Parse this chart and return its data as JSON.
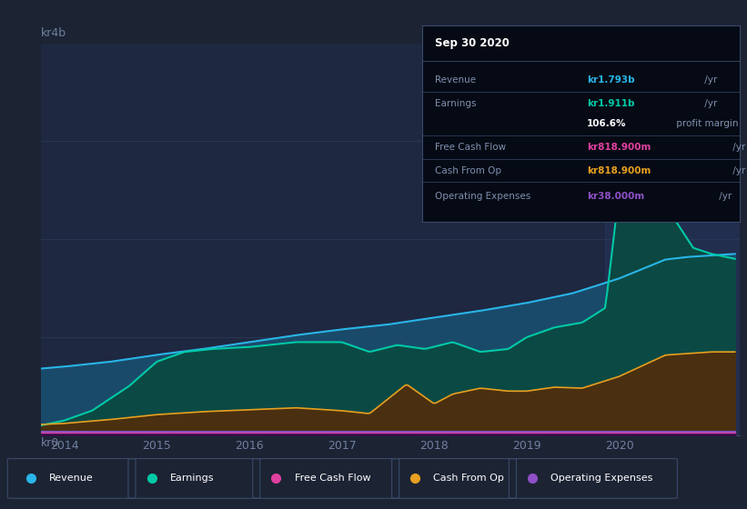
{
  "bg_color": "#1c2333",
  "plot_bg_color": "#1e2840",
  "grid_color": "#2a3a5a",
  "xlim": [
    2013.75,
    2021.3
  ],
  "ylim": [
    0,
    4000000000
  ],
  "xtick_positions": [
    2014,
    2015,
    2016,
    2017,
    2018,
    2019,
    2020
  ],
  "xtick_labels": [
    "2014",
    "2015",
    "2016",
    "2017",
    "2018",
    "2019",
    "2020"
  ],
  "ylabel_top": "kr4b",
  "ylabel_bot": "kr0",
  "series": {
    "revenue": {
      "color": "#29b5e8",
      "fill_color": "#1a4a6a",
      "label": "Revenue"
    },
    "earnings": {
      "color": "#00c9a7",
      "fill_color": "#0a4a40",
      "label": "Earnings"
    },
    "free_cash_flow": {
      "color": "#e040a0",
      "fill_color": "#600030",
      "label": "Free Cash Flow"
    },
    "cash_from_op": {
      "color": "#e8a020",
      "fill_color": "#4a3010",
      "label": "Cash From Op"
    },
    "operating_expenses": {
      "color": "#9050c8",
      "fill_color": "#30104a",
      "label": "Operating Expenses"
    }
  },
  "tooltip": {
    "date": "Sep 30 2020",
    "rows": [
      {
        "label": "Revenue",
        "value": "kr1.793b",
        "unit": " /yr",
        "value_color": "#29b5e8",
        "sep_before": true
      },
      {
        "label": "Earnings",
        "value": "kr1.911b",
        "unit": " /yr",
        "value_color": "#00c9a7",
        "sep_before": true
      },
      {
        "label": "",
        "value": "106.6%",
        "unit": " profit margin",
        "value_color": "#ffffff",
        "sep_before": false
      },
      {
        "label": "Free Cash Flow",
        "value": "kr818.900m",
        "unit": " /yr",
        "value_color": "#e040a0",
        "sep_before": true
      },
      {
        "label": "Cash From Op",
        "value": "kr818.900m",
        "unit": " /yr",
        "value_color": "#e8a020",
        "sep_before": true
      },
      {
        "label": "Operating Expenses",
        "value": "kr38.000m",
        "unit": " /yr",
        "value_color": "#9050c8",
        "sep_before": true
      }
    ],
    "bg_color": "#050a14",
    "border_color": "#3a4a6a",
    "text_color": "#8090b0",
    "title_color": "#ffffff"
  },
  "highlight_x_start": 2019.85,
  "highlight_x_end": 2021.3,
  "highlight_color": "#2a3a6a",
  "highlight_alpha": 0.35
}
